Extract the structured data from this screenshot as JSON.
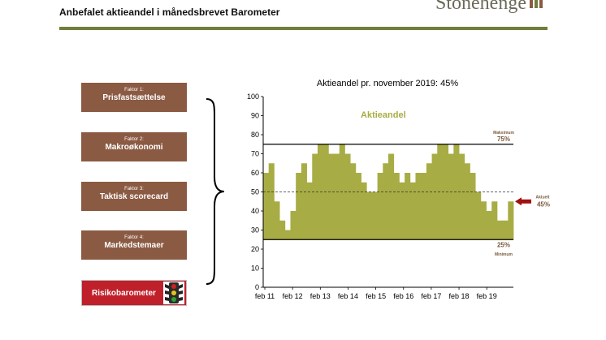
{
  "header": {
    "title": "Anbefalet aktieandel i månedsbrevet Barometer",
    "brand": "Stonehenge"
  },
  "factors": [
    {
      "small": "Faktor 1:",
      "name": "Prisfastsættelse"
    },
    {
      "small": "Faktor 2:",
      "name": "Makroøkonomi"
    },
    {
      "small": "Faktor 3:",
      "name": "Taktisk scorecard"
    },
    {
      "small": "Faktor 4:",
      "name": "Markedstemaer"
    }
  ],
  "risk_label": "Risikobarometer",
  "icons": {
    "brand": "stonehenge-logo-icon",
    "risk": "traffic-light-icon",
    "brace": "curly-brace-icon",
    "arrow": "left-arrow-icon"
  },
  "colors": {
    "bar": "#a8ac44",
    "factor": "#8b5a43",
    "risk": "#c0202a",
    "rule": "#6d7f3b",
    "arrow": "#a01010"
  },
  "chart_data": {
    "type": "bar",
    "title": "Aktieandel pr. november 2019: 45%",
    "series": [
      {
        "name": "Aktieandel",
        "values": [
          60,
          65,
          45,
          35,
          30,
          40,
          60,
          65,
          55,
          70,
          75,
          75,
          70,
          70,
          75,
          70,
          65,
          60,
          55,
          50,
          50,
          60,
          65,
          70,
          60,
          55,
          60,
          55,
          60,
          60,
          65,
          70,
          75,
          75,
          70,
          75,
          70,
          65,
          60,
          50,
          45,
          40,
          45,
          35,
          35,
          45
        ]
      }
    ],
    "x_ticks": [
      "feb 11",
      "feb 12",
      "feb 13",
      "feb 14",
      "feb 15",
      "feb 16",
      "feb 17",
      "feb 18",
      "feb 19"
    ],
    "ylim": [
      0,
      100
    ],
    "y_ticks": [
      "0",
      "10",
      "20",
      "30",
      "40",
      "50",
      "60",
      "70",
      "80",
      "90",
      "100"
    ],
    "maximum": {
      "value": 75,
      "label": "Maksimum",
      "value_label": "75%"
    },
    "minimum": {
      "value": 25,
      "label": "Minimum",
      "value_label": "25%"
    },
    "neutral_line": 50,
    "current": {
      "label": "Aktuelt",
      "value_label": "45%",
      "value": 45
    }
  }
}
